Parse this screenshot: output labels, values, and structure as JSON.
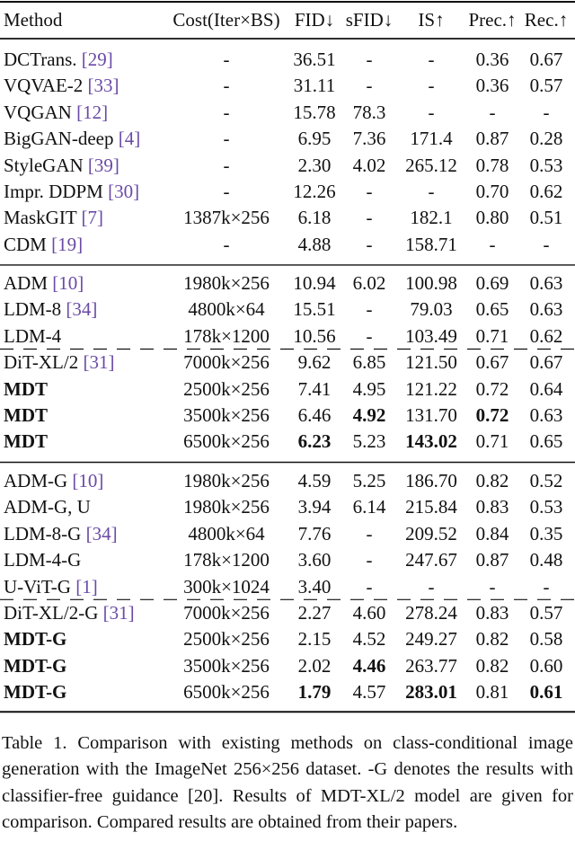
{
  "table": {
    "header": [
      "Method",
      "Cost(Iter×BS)",
      "FID↓",
      "sFID↓",
      "IS↑",
      "Prec.↑",
      "Rec.↑"
    ],
    "groups": [
      {
        "rows": [
          {
            "method": "DCTrans.",
            "cite": "[29]",
            "cells": [
              "-",
              "36.51",
              "-",
              "-",
              "0.36",
              "0.67"
            ]
          },
          {
            "method": "VQVAE-2",
            "cite": "[33]",
            "cells": [
              "-",
              "31.11",
              "-",
              "-",
              "0.36",
              "0.57"
            ]
          },
          {
            "method": "VQGAN",
            "cite": "[12]",
            "cells": [
              "-",
              "15.78",
              "78.3",
              "-",
              "-",
              "-"
            ]
          },
          {
            "method": "BigGAN-deep",
            "cite": "[4]",
            "cells": [
              "-",
              "6.95",
              "7.36",
              "171.4",
              "0.87",
              "0.28"
            ]
          },
          {
            "method": "StyleGAN",
            "cite": "[39]",
            "cells": [
              "-",
              "2.30",
              "4.02",
              "265.12",
              "0.78",
              "0.53"
            ]
          },
          {
            "method": "Impr. DDPM",
            "cite": "[30]",
            "cells": [
              "-",
              "12.26",
              "-",
              "-",
              "0.70",
              "0.62"
            ]
          },
          {
            "method": "MaskGIT",
            "cite": "[7]",
            "cells": [
              "1387k×256",
              "6.18",
              "-",
              "182.1",
              "0.80",
              "0.51"
            ]
          },
          {
            "method": "CDM",
            "cite": "[19]",
            "cells": [
              "-",
              "4.88",
              "-",
              "158.71",
              "-",
              "-"
            ]
          }
        ]
      },
      {
        "rows": [
          {
            "method": "ADM",
            "cite": "[10]",
            "cells": [
              "1980k×256",
              "10.94",
              "6.02",
              "100.98",
              "0.69",
              "0.63"
            ]
          },
          {
            "method": "LDM-8",
            "cite": "[34]",
            "cells": [
              "4800k×64",
              "15.51",
              "-",
              "79.03",
              "0.65",
              "0.63"
            ]
          },
          {
            "method": "LDM-4",
            "cells": [
              "178k×1200",
              "10.56",
              "-",
              "103.49",
              "0.71",
              "0.62"
            ]
          },
          {
            "method": "DiT-XL/2",
            "cite": "[31]",
            "dashed_above": true,
            "cells": [
              "7000k×256",
              "9.62",
              "6.85",
              "121.50",
              "0.67",
              "0.67"
            ]
          },
          {
            "method": "MDT",
            "bold_method": true,
            "cells": [
              "2500k×256",
              "7.41",
              "4.95",
              "121.22",
              "0.72",
              "0.64"
            ]
          },
          {
            "method": "MDT",
            "bold_method": true,
            "bold": [
              2,
              4
            ],
            "cells": [
              "3500k×256",
              "6.46",
              "4.92",
              "131.70",
              "0.72",
              "0.63"
            ]
          },
          {
            "method": "MDT",
            "bold_method": true,
            "bold": [
              1,
              3
            ],
            "cells": [
              "6500k×256",
              "6.23",
              "5.23",
              "143.02",
              "0.71",
              "0.65"
            ]
          }
        ]
      },
      {
        "rows": [
          {
            "method": "ADM-G",
            "cite": "[10]",
            "cells": [
              "1980k×256",
              "4.59",
              "5.25",
              "186.70",
              "0.82",
              "0.52"
            ]
          },
          {
            "method": "ADM-G, U",
            "cells": [
              "1980k×256",
              "3.94",
              "6.14",
              "215.84",
              "0.83",
              "0.53"
            ]
          },
          {
            "method": "LDM-8-G",
            "cite": "[34]",
            "cells": [
              "4800k×64",
              "7.76",
              "-",
              "209.52",
              "0.84",
              "0.35"
            ]
          },
          {
            "method": "LDM-4-G",
            "cells": [
              "178k×1200",
              "3.60",
              "-",
              "247.67",
              "0.87",
              "0.48"
            ]
          },
          {
            "method": "U-ViT-G",
            "cite": "[1]",
            "cells": [
              "300k×1024",
              "3.40",
              "-",
              "-",
              "-",
              "-"
            ]
          },
          {
            "method": "DiT-XL/2-G",
            "cite": "[31]",
            "dashed_above": true,
            "cells": [
              "7000k×256",
              "2.27",
              "4.60",
              "278.24",
              "0.83",
              "0.57"
            ]
          },
          {
            "method": "MDT-G",
            "bold_method": true,
            "cells": [
              "2500k×256",
              "2.15",
              "4.52",
              "249.27",
              "0.82",
              "0.58"
            ]
          },
          {
            "method": "MDT-G",
            "bold_method": true,
            "bold": [
              2
            ],
            "cells": [
              "3500k×256",
              "2.02",
              "4.46",
              "263.77",
              "0.82",
              "0.60"
            ]
          },
          {
            "method": "MDT-G",
            "bold_method": true,
            "bold": [
              1,
              3,
              5
            ],
            "cells": [
              "6500k×256",
              "1.79",
              "4.57",
              "283.01",
              "0.81",
              "0.61"
            ]
          }
        ]
      }
    ]
  },
  "caption": "Table 1. Comparison with existing methods on class-conditional image generation with the ImageNet 256×256 dataset. -G denotes the results with classifier-free guidance [20]. Results of MDT-XL/2 model are given for comparison. Compared results are obtained from their papers."
}
